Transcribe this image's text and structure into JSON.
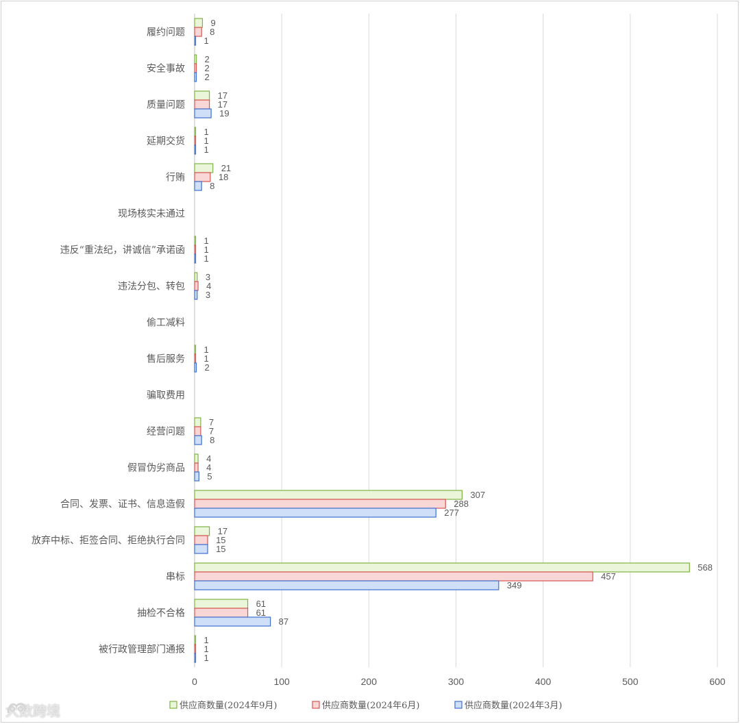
{
  "chart_data": {
    "type": "bar",
    "orientation": "horizontal",
    "title": "",
    "xlabel": "",
    "ylabel": "",
    "xlim": [
      0,
      600
    ],
    "x_ticks": [
      "0",
      "100",
      "200",
      "300",
      "400",
      "500",
      "600"
    ],
    "grid": "vertical",
    "legend_position": "bottom",
    "categories": [
      "履约问题",
      "安全事故",
      "质量问题",
      "延期交货",
      "行贿",
      "现场核实未通过",
      "违反“重法纪，讲诚信”承诺函",
      "违法分包、转包",
      "偷工减料",
      "售后服务",
      "骗取费用",
      "经营问题",
      "假冒伪劣商品",
      "合同、发票、证书、信息造假",
      "放弃中标、拒签合同、拒绝执行合同",
      "串标",
      "抽检不合格",
      "被行政管理部门通报"
    ],
    "series": [
      {
        "name": "供应商数量(2024年9月)",
        "fill": "#ebf5d9",
        "stroke": "#7cb342",
        "values": [
          9,
          2,
          17,
          1,
          21,
          null,
          1,
          3,
          null,
          1,
          null,
          7,
          4,
          307,
          17,
          568,
          61,
          1
        ]
      },
      {
        "name": "供应商数量(2024年6月)",
        "fill": "#f9d7d7",
        "stroke": "#d9534f",
        "values": [
          8,
          2,
          17,
          1,
          18,
          null,
          1,
          4,
          null,
          1,
          null,
          7,
          4,
          288,
          15,
          457,
          61,
          1
        ]
      },
      {
        "name": "供应商数量(2024年3月)",
        "fill": "#cfdff7",
        "stroke": "#3f6fd1",
        "values": [
          1,
          2,
          19,
          1,
          8,
          null,
          1,
          3,
          null,
          2,
          null,
          8,
          5,
          277,
          15,
          349,
          87,
          1
        ]
      }
    ]
  },
  "watermark": {
    "text": "大数跨境",
    "icon": "dashuju-logo-icon"
  }
}
